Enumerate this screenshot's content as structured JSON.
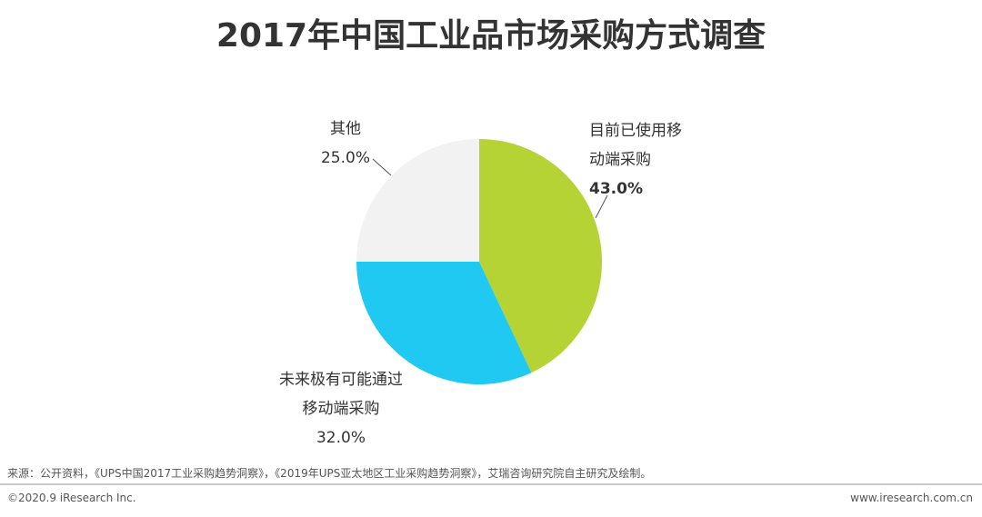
{
  "chart_data": {
    "type": "pie",
    "title": "2017年中国工业品市场采购方式调查",
    "categories": [
      "目前已使用移动端采购",
      "未来极有可能通过移动端采购",
      "其他"
    ],
    "values": [
      43.0,
      32.0,
      25.0
    ],
    "value_labels": [
      "43.0%",
      "32.0%",
      "25.0%"
    ],
    "colors": [
      "#b5d334",
      "#1fc9f2",
      "#f2f2f2"
    ]
  },
  "footer": {
    "source": "来源：公开资料，《UPS中国2017工业采购趋势洞察》，《2019年UPS亚太地区工业采购趋势洞察》，艾瑞咨询研究院自主研究及绘制。",
    "copyright": "©2020.9 iResearch Inc.",
    "url": "www.iresearch.com.cn"
  }
}
